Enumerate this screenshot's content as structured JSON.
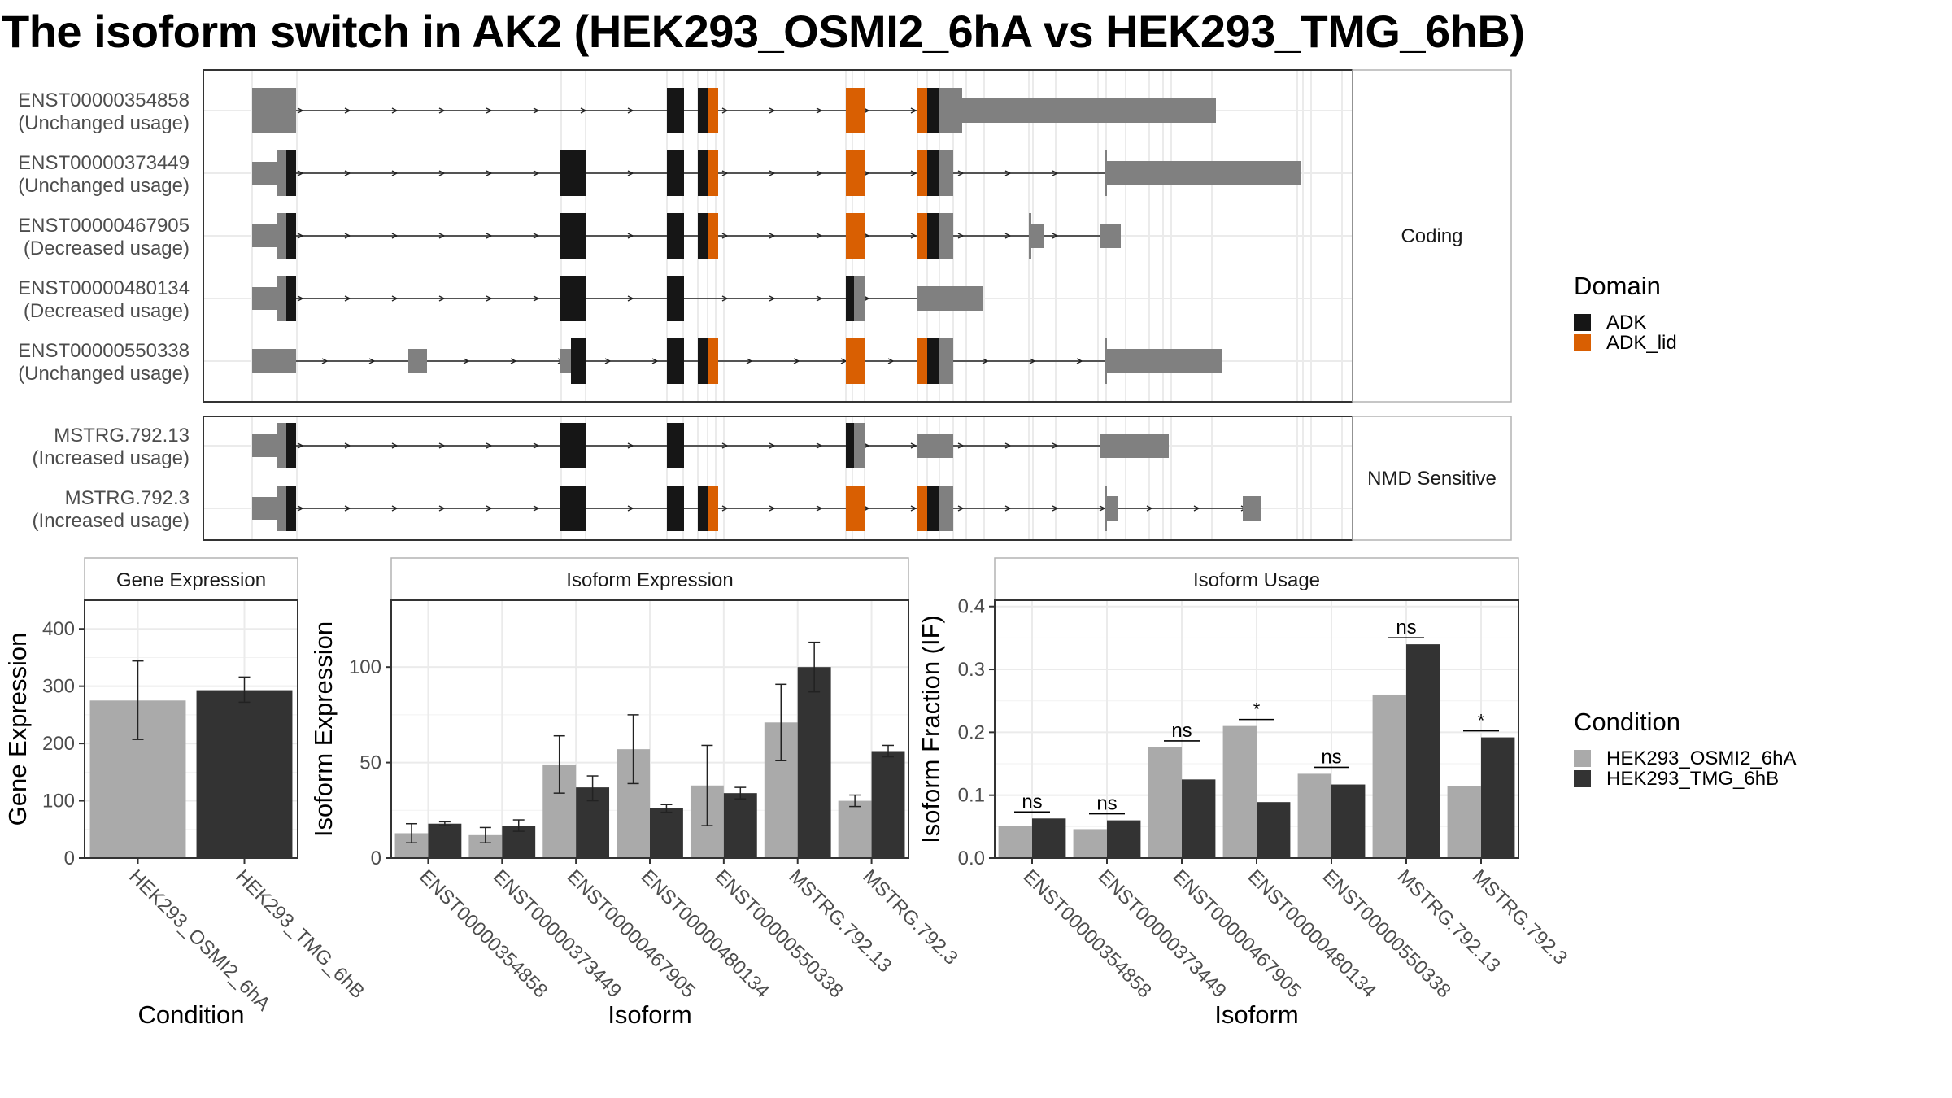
{
  "title": "The isoform switch in AK2 (HEK293_OSMI2_6hA vs HEK293_TMG_6hB)",
  "colors": {
    "utr": "#808080",
    "ADK": "#161616",
    "ADK_lid": "#D95F02",
    "cond1": "#AAAAAA",
    "cond2": "#333333"
  },
  "structure_panels": [
    {
      "strip": "Coding",
      "isoforms": [
        {
          "id": "ENST00000354858",
          "usage": "(Unchanged usage)"
        },
        {
          "id": "ENST00000373449",
          "usage": "(Unchanged usage)"
        },
        {
          "id": "ENST00000467905",
          "usage": "(Decreased usage)"
        },
        {
          "id": "ENST00000480134",
          "usage": "(Decreased usage)"
        },
        {
          "id": "ENST00000550338",
          "usage": "(Unchanged usage)"
        }
      ]
    },
    {
      "strip": "NMD Sensitive",
      "isoforms": [
        {
          "id": "MSTRG.792.13",
          "usage": "(Increased usage)"
        },
        {
          "id": "MSTRG.792.3",
          "usage": "(Increased usage)"
        }
      ]
    }
  ],
  "domain_legend": {
    "title": "Domain",
    "items": [
      {
        "label": "ADK",
        "color": "#161616"
      },
      {
        "label": "ADK_lid",
        "color": "#D95F02"
      }
    ]
  },
  "condition_legend": {
    "title": "Condition",
    "items": [
      {
        "label": "HEK293_OSMI2_6hA",
        "color": "#AAAAAA"
      },
      {
        "label": "HEK293_TMG_6hB",
        "color": "#333333"
      }
    ]
  },
  "chart_data": [
    {
      "type": "bar",
      "strip": "Gene Expression",
      "xlabel": "Condition",
      "ylabel": "Gene Expression",
      "ylim": [
        0,
        450
      ],
      "yticks": [
        0,
        100,
        200,
        300,
        400
      ],
      "categories": [
        "HEK293_OSMI2_6hA",
        "HEK293_TMG_6hB"
      ],
      "values": [
        275,
        293
      ],
      "errors": [
        [
          207,
          344
        ],
        [
          272,
          316
        ]
      ]
    },
    {
      "type": "bar",
      "strip": "Isoform Expression",
      "xlabel": "Isoform",
      "ylabel": "Isoform Expression",
      "ylim": [
        0,
        135
      ],
      "yticks": [
        0,
        50,
        100
      ],
      "categories": [
        "ENST00000354858",
        "ENST00000373449",
        "ENST00000467905",
        "ENST00000480134",
        "ENST00000550338",
        "MSTRG.792.13",
        "MSTRG.792.3"
      ],
      "series": [
        {
          "name": "HEK293_OSMI2_6hA",
          "values": [
            13,
            12,
            49,
            57,
            38,
            71,
            30
          ],
          "errors": [
            [
              8,
              18
            ],
            [
              8,
              16
            ],
            [
              34,
              64
            ],
            [
              39,
              75
            ],
            [
              17,
              59
            ],
            [
              51,
              91
            ],
            [
              27,
              33
            ]
          ]
        },
        {
          "name": "HEK293_TMG_6hB",
          "values": [
            18,
            17,
            37,
            26,
            34,
            100,
            56
          ],
          "errors": [
            [
              17,
              19
            ],
            [
              14,
              20
            ],
            [
              30,
              43
            ],
            [
              24,
              28
            ],
            [
              31,
              37
            ],
            [
              87,
              113
            ],
            [
              53,
              59
            ]
          ]
        }
      ]
    },
    {
      "type": "bar",
      "strip": "Isoform Usage",
      "xlabel": "Isoform",
      "ylabel": "Isoform Fraction (IF)",
      "ylim": [
        0,
        0.41
      ],
      "yticks": [
        0.0,
        0.1,
        0.2,
        0.3,
        0.4
      ],
      "ytick_labels": [
        "0.0",
        "0.1",
        "0.2",
        "0.3",
        "0.4"
      ],
      "categories": [
        "ENST00000354858",
        "ENST00000373449",
        "ENST00000467905",
        "ENST00000480134",
        "ENST00000550338",
        "MSTRG.792.13",
        "MSTRG.792.3"
      ],
      "series": [
        {
          "name": "HEK293_OSMI2_6hA",
          "values": [
            0.051,
            0.046,
            0.176,
            0.21,
            0.134,
            0.26,
            0.114
          ]
        },
        {
          "name": "HEK293_TMG_6hB",
          "values": [
            0.063,
            0.06,
            0.125,
            0.089,
            0.117,
            0.34,
            0.192
          ]
        }
      ],
      "significance": [
        "ns",
        "ns",
        "ns",
        "*",
        "ns",
        "ns",
        "*"
      ]
    }
  ]
}
